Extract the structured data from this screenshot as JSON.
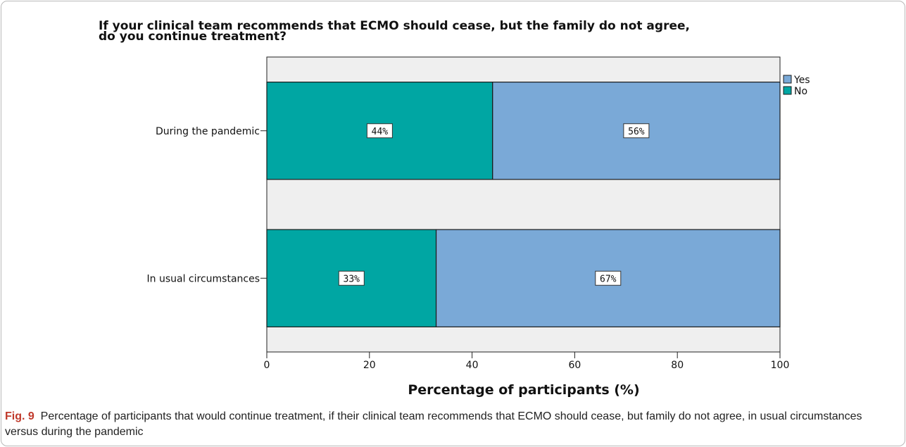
{
  "chart_data": {
    "type": "bar",
    "orientation": "horizontal",
    "stacked": true,
    "title_lines": [
      "If your clinical team recommends that ECMO should cease, but the family do not agree,",
      "do you continue treatment?"
    ],
    "categories": [
      "During the pandemic",
      "In usual circumstances"
    ],
    "series": [
      {
        "name": "No",
        "values": [
          44,
          33
        ],
        "color": "#00a6a3"
      },
      {
        "name": "Yes",
        "values": [
          56,
          67
        ],
        "color": "#7aa9d7"
      }
    ],
    "data_labels": [
      [
        "44%",
        "33%"
      ],
      [
        "56%",
        "67%"
      ]
    ],
    "legend_order": [
      "Yes",
      "No"
    ],
    "legend_position": "top-right",
    "xlabel": "Percentage of participants (%)",
    "ylabel": "",
    "xlim": [
      0,
      100
    ],
    "xticks": [
      0,
      20,
      40,
      60,
      80,
      100
    ],
    "plot_background": "#efefef",
    "grid": false
  },
  "caption": {
    "label": "Fig. 9",
    "text": "Percentage of participants that would continue treatment, if their clinical team recommends that ECMO should cease, but family do not agree, in usual circumstances versus during the pandemic"
  }
}
